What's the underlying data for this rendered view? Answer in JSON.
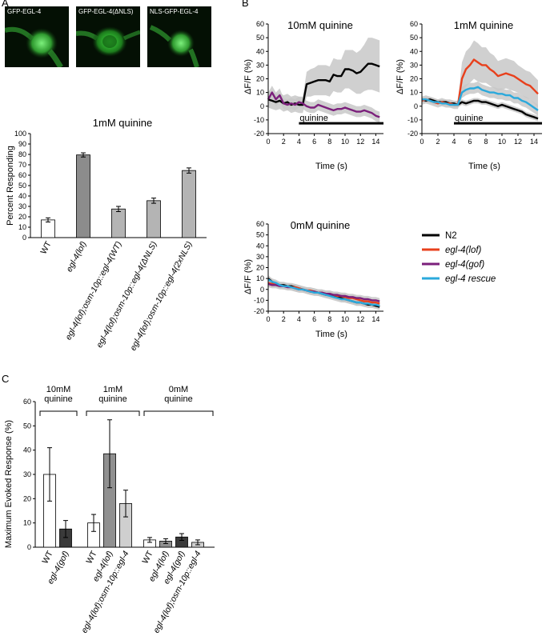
{
  "panels": {
    "a": "A",
    "b": "B",
    "c": "C"
  },
  "micrographs": [
    {
      "label": "GFP-EGL-4"
    },
    {
      "label": "GFP-EGL-4(ΔNLS)"
    },
    {
      "label": "NLS-GFP-EGL-4"
    }
  ],
  "chart_data": [
    {
      "id": "A",
      "type": "bar",
      "title": "1mM quinine",
      "xlabel": "",
      "ylabel": "Percent Responding",
      "ylim": [
        0,
        100
      ],
      "yticks": [
        0,
        10,
        20,
        30,
        40,
        50,
        60,
        70,
        80,
        90,
        100
      ],
      "categories": [
        "WT",
        "egl-4(lof)",
        "egl-4(lof);osm-10p::egl-4(WT)",
        "egl-4(lof);osm-10p::egl-4(ΔNLS)",
        "egl-4(lof);osm-10p::egl-4(2xNLS)"
      ],
      "values": [
        17,
        79.5,
        27.5,
        35.5,
        64.5
      ],
      "errors": [
        2,
        2,
        2.5,
        2.5,
        2.5
      ],
      "colors": [
        "#ffffff",
        "#8c8c8c",
        "#b4b4b4",
        "#b4b4b4",
        "#b4b4b4"
      ]
    },
    {
      "id": "B-10mM",
      "type": "line",
      "title": "10mM quinine",
      "xlabel": "Time (s)",
      "ylabel": "ΔF/F (%)",
      "xlim": [
        0,
        15
      ],
      "ylim": [
        -20,
        60
      ],
      "xticks": [
        0,
        2,
        4,
        6,
        8,
        10,
        12,
        14
      ],
      "yticks": [
        -20,
        -10,
        0,
        10,
        20,
        30,
        40,
        50,
        60
      ],
      "stimulus": {
        "label": "quinine",
        "start": 4,
        "end": 15
      },
      "x": [
        0,
        0.5,
        1,
        1.5,
        2,
        2.5,
        3,
        3.5,
        4,
        4.5,
        5,
        5.5,
        6,
        6.5,
        7,
        7.5,
        8,
        8.5,
        9,
        9.5,
        10,
        10.5,
        11,
        11.5,
        12,
        12.5,
        13,
        13.5,
        14,
        14.5
      ],
      "series": [
        {
          "name": "N2",
          "color": "#000000",
          "values": [
            5,
            4,
            3,
            4,
            2,
            3,
            1,
            2,
            1,
            1,
            16,
            17,
            18,
            19,
            19,
            19,
            18,
            23,
            22,
            22,
            27,
            27,
            26,
            24,
            25,
            28,
            31,
            31,
            30,
            29
          ],
          "sem": [
            6,
            6,
            6,
            6,
            6,
            6,
            6,
            6,
            6,
            6,
            9,
            10,
            10,
            11,
            11,
            11,
            11,
            12,
            12,
            12,
            14,
            14,
            15,
            15,
            16,
            17,
            19,
            19,
            19,
            19
          ]
        },
        {
          "name": "egl-4(gof)",
          "color": "#7b1f7b",
          "values": [
            5,
            10,
            5,
            8,
            2,
            1,
            2,
            1,
            3,
            2,
            0,
            -1,
            -1,
            1,
            0,
            -1,
            -2,
            -3,
            -2,
            -2,
            -1,
            -2,
            -3,
            -4,
            -4,
            -3,
            -4,
            -5,
            -7,
            -8
          ],
          "sem": [
            5,
            5,
            5,
            5,
            4,
            4,
            4,
            4,
            4,
            4,
            4,
            4,
            4,
            4,
            4,
            4,
            4,
            4,
            4,
            4,
            4,
            4,
            4,
            4,
            4,
            4,
            4,
            4,
            4,
            4
          ]
        }
      ]
    },
    {
      "id": "B-1mM",
      "type": "line",
      "title": "1mM quinine",
      "xlabel": "Time (s)",
      "ylabel": "ΔF/F (%)",
      "xlim": [
        0,
        15
      ],
      "ylim": [
        -20,
        60
      ],
      "xticks": [
        0,
        2,
        4,
        6,
        8,
        10,
        12,
        14
      ],
      "yticks": [
        -20,
        -10,
        0,
        10,
        20,
        30,
        40,
        50,
        60
      ],
      "stimulus": {
        "label": "quinine",
        "start": 4,
        "end": 15
      },
      "x": [
        0,
        0.5,
        1,
        1.5,
        2,
        2.5,
        3,
        3.5,
        4,
        4.5,
        5,
        5.5,
        6,
        6.5,
        7,
        7.5,
        8,
        8.5,
        9,
        9.5,
        10,
        10.5,
        11,
        11.5,
        12,
        12.5,
        13,
        13.5,
        14,
        14.5
      ],
      "series": [
        {
          "name": "N2",
          "color": "#000000",
          "values": [
            5,
            4,
            5,
            4,
            3,
            3,
            3,
            2,
            2,
            1,
            3,
            2,
            3,
            4,
            4,
            3,
            3,
            2,
            1,
            0,
            1,
            0,
            -1,
            -2,
            -3,
            -4,
            -6,
            -7,
            -8,
            -9
          ],
          "sem": [
            2,
            2,
            2,
            2,
            2,
            2,
            2,
            2,
            2,
            2,
            2,
            2,
            2,
            2,
            2,
            2,
            2,
            2,
            2,
            2,
            2,
            2,
            2,
            2,
            2,
            2,
            2,
            2,
            2,
            2
          ]
        },
        {
          "name": "egl-4(lof)",
          "color": "#e8401c",
          "values": [
            4,
            5,
            4,
            3,
            2,
            3,
            2,
            2,
            1,
            1,
            20,
            27,
            30,
            34,
            32,
            30,
            30,
            27,
            25,
            22,
            23,
            24,
            23,
            22,
            20,
            18,
            16,
            15,
            12,
            9
          ],
          "sem": [
            3,
            3,
            3,
            3,
            3,
            3,
            3,
            3,
            3,
            3,
            12,
            13,
            13,
            14,
            14,
            13,
            13,
            12,
            12,
            11,
            11,
            11,
            11,
            11,
            10,
            10,
            10,
            10,
            10,
            10
          ]
        },
        {
          "name": "egl-4 rescue",
          "color": "#2aa9dc",
          "values": [
            5,
            5,
            4,
            3,
            3,
            2,
            2,
            1,
            1,
            1,
            10,
            12,
            13,
            13,
            14,
            12,
            11,
            10,
            10,
            9,
            9,
            8,
            8,
            6,
            6,
            4,
            3,
            1,
            -1,
            -3
          ],
          "sem": [
            2,
            2,
            2,
            2,
            2,
            2,
            2,
            2,
            2,
            2,
            4,
            4,
            4,
            4,
            4,
            4,
            4,
            4,
            4,
            4,
            4,
            4,
            4,
            4,
            4,
            4,
            4,
            4,
            4,
            4
          ]
        }
      ]
    },
    {
      "id": "B-0mM",
      "type": "line",
      "title": "0mM quinine",
      "xlabel": "Time (s)",
      "ylabel": "ΔF/F (%)",
      "xlim": [
        0,
        15
      ],
      "ylim": [
        -20,
        60
      ],
      "xticks": [
        0,
        2,
        4,
        6,
        8,
        10,
        12,
        14
      ],
      "yticks": [
        -20,
        -10,
        0,
        10,
        20,
        30,
        40,
        50,
        60
      ],
      "x": [
        0,
        0.5,
        1,
        1.5,
        2,
        2.5,
        3,
        3.5,
        4,
        4.5,
        5,
        5.5,
        6,
        6.5,
        7,
        7.5,
        8,
        8.5,
        9,
        9.5,
        10,
        10.5,
        11,
        11.5,
        12,
        12.5,
        13,
        13.5,
        14,
        14.5
      ],
      "series": [
        {
          "name": "N2",
          "color": "#000000",
          "values": [
            10,
            7,
            5,
            4,
            4,
            3,
            3,
            2,
            1,
            0,
            -1,
            -2,
            -2,
            -3,
            -4,
            -5,
            -5,
            -6,
            -7,
            -8,
            -9,
            -10,
            -11,
            -12,
            -12,
            -13,
            -14,
            -14,
            -15,
            -16
          ],
          "sem": [
            3,
            3,
            3,
            3,
            3,
            3,
            3,
            3,
            3,
            3,
            3,
            3,
            3,
            3,
            3,
            3,
            3,
            3,
            3,
            3,
            3,
            3,
            3,
            3,
            3,
            3,
            3,
            3,
            3,
            3
          ]
        },
        {
          "name": "egl-4(lof)",
          "color": "#e8401c",
          "values": [
            6,
            5,
            5,
            4,
            3,
            3,
            2,
            2,
            1,
            0,
            -1,
            -1,
            -2,
            -3,
            -3,
            -4,
            -4,
            -5,
            -6,
            -6,
            -7,
            -8,
            -8,
            -9,
            -10,
            -11,
            -11,
            -12,
            -12,
            -13
          ],
          "sem": [
            3,
            3,
            3,
            3,
            3,
            3,
            3,
            3,
            3,
            3,
            3,
            3,
            3,
            3,
            3,
            3,
            3,
            3,
            3,
            3,
            3,
            3,
            3,
            3,
            3,
            3,
            3,
            3,
            3,
            3
          ]
        },
        {
          "name": "egl-4(gof)",
          "color": "#7b1f7b",
          "values": [
            5,
            4,
            4,
            3,
            3,
            2,
            2,
            1,
            0,
            0,
            -1,
            -2,
            -2,
            -3,
            -3,
            -4,
            -4,
            -5,
            -5,
            -6,
            -6,
            -7,
            -7,
            -8,
            -8,
            -9,
            -9,
            -10,
            -10,
            -11
          ],
          "sem": [
            3,
            3,
            3,
            3,
            3,
            3,
            3,
            3,
            3,
            3,
            3,
            3,
            3,
            3,
            3,
            3,
            3,
            3,
            3,
            3,
            3,
            3,
            3,
            3,
            3,
            3,
            3,
            3,
            3,
            3
          ]
        },
        {
          "name": "egl-4 rescue",
          "color": "#2aa9dc",
          "values": [
            9,
            7,
            6,
            4,
            3,
            3,
            2,
            1,
            0,
            0,
            -1,
            -2,
            -3,
            -3,
            -4,
            -5,
            -6,
            -7,
            -8,
            -9,
            -9,
            -10,
            -11,
            -12,
            -12,
            -13,
            -13,
            -14,
            -14,
            -15
          ],
          "sem": [
            3,
            3,
            3,
            3,
            3,
            3,
            3,
            3,
            3,
            3,
            3,
            3,
            3,
            3,
            3,
            3,
            3,
            3,
            3,
            3,
            3,
            3,
            3,
            3,
            3,
            3,
            3,
            3,
            3,
            3
          ]
        }
      ]
    },
    {
      "id": "C",
      "type": "bar",
      "title": "",
      "xlabel": "",
      "ylabel": "Maximum Evoked Response (%)",
      "ylim": [
        0,
        60
      ],
      "yticks": [
        0,
        10,
        20,
        30,
        40,
        50,
        60
      ],
      "groups": [
        {
          "label": "10mM\nquinine",
          "categories": [
            "WT",
            "egl-4(gof)"
          ],
          "values": [
            30,
            7.5
          ],
          "errors": [
            11,
            3.5
          ],
          "colors": [
            "#ffffff",
            "#3a3a3a"
          ]
        },
        {
          "label": "1mM\nquinine",
          "categories": [
            "WT",
            "egl-4(lof)",
            "egl-4(lof);osm-10p::egl-4"
          ],
          "values": [
            10,
            38.5,
            18
          ],
          "errors": [
            3.5,
            14,
            5.5
          ],
          "colors": [
            "#ffffff",
            "#909090",
            "#cfcfcf"
          ]
        },
        {
          "label": "0mM\nquinine",
          "categories": [
            "WT",
            "egl-4(lof)",
            "egl-4(gof)",
            "egl-4(lof);osm-10p::egl-4"
          ],
          "values": [
            3,
            2.5,
            4.2,
            2
          ],
          "errors": [
            1,
            1,
            1.4,
            1
          ],
          "colors": [
            "#ffffff",
            "#909090",
            "#3a3a3a",
            "#cfcfcf"
          ]
        }
      ]
    }
  ],
  "legend": {
    "placement": "right",
    "entries": [
      {
        "name": "N2",
        "color": "#000000"
      },
      {
        "name": "egl-4(lof)",
        "color": "#e8401c"
      },
      {
        "name": "egl-4(gof)",
        "color": "#7b1f7b"
      },
      {
        "name": "egl-4 rescue",
        "color": "#2aa9dc"
      }
    ]
  }
}
